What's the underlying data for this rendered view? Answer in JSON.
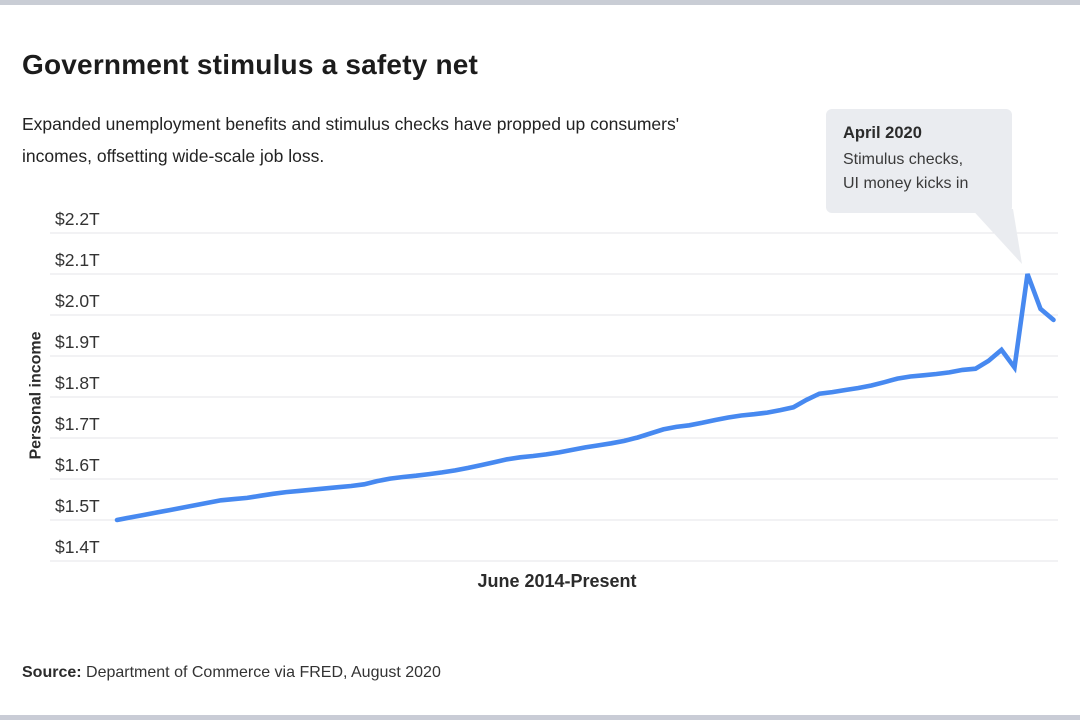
{
  "page": {
    "background": "#ffffff",
    "top_bar_color": "#c9cdd5",
    "bottom_bar_color": "#c9ccd6"
  },
  "header": {
    "title": "Government stimulus a safety net",
    "subtitle": "Expanded unemployment benefits and stimulus checks have propped up consumers' incomes, offsetting wide-scale job loss."
  },
  "callout": {
    "title": "April 2020",
    "body_line1": "Stimulus checks,",
    "body_line2": "UI money kicks in",
    "background": "#eaecf0"
  },
  "footer": {
    "source_label": "Source:",
    "source_text": "Department of Commerce via FRED, August 2020"
  },
  "chart_data": {
    "type": "line",
    "title": "Government stimulus a safety net",
    "xlabel": "June 2014-Present",
    "ylabel": "Personal income",
    "unit": "trillions of US dollars",
    "x_start": "June 2014",
    "x_end": "June 2020",
    "frequency": "monthly",
    "ylim": [
      1.4,
      2.2
    ],
    "grid": true,
    "legend": false,
    "line_color": "#4789f0",
    "grid_color": "#e4e4e8",
    "y_ticks": [
      {
        "label": "$2.2T",
        "value": 2.2
      },
      {
        "label": "$2.1T",
        "value": 2.1
      },
      {
        "label": "$2.0T",
        "value": 2.0
      },
      {
        "label": "$1.9T",
        "value": 1.9
      },
      {
        "label": "$1.8T",
        "value": 1.8
      },
      {
        "label": "$1.7T",
        "value": 1.7
      },
      {
        "label": "$1.6T",
        "value": 1.6
      },
      {
        "label": "$1.5T",
        "value": 1.5
      },
      {
        "label": "$1.4T",
        "value": 1.4
      }
    ],
    "values": [
      1.5,
      1.506,
      1.512,
      1.518,
      1.524,
      1.53,
      1.536,
      1.542,
      1.548,
      1.551,
      1.554,
      1.559,
      1.564,
      1.568,
      1.571,
      1.574,
      1.577,
      1.58,
      1.583,
      1.587,
      1.595,
      1.601,
      1.605,
      1.608,
      1.612,
      1.616,
      1.621,
      1.627,
      1.634,
      1.641,
      1.648,
      1.653,
      1.656,
      1.66,
      1.665,
      1.671,
      1.677,
      1.682,
      1.687,
      1.693,
      1.701,
      1.711,
      1.721,
      1.727,
      1.731,
      1.737,
      1.744,
      1.75,
      1.755,
      1.758,
      1.762,
      1.768,
      1.775,
      1.793,
      1.808,
      1.812,
      1.817,
      1.822,
      1.828,
      1.836,
      1.845,
      1.85,
      1.853,
      1.856,
      1.86,
      1.866,
      1.869,
      1.888,
      1.915,
      1.872,
      2.1,
      2.015,
      1.988
    ],
    "annotation": {
      "label": "April 2020 — Stimulus checks, UI money kicks in",
      "points_to": "April 2020",
      "point_index": 70,
      "point_value": 2.1
    }
  }
}
